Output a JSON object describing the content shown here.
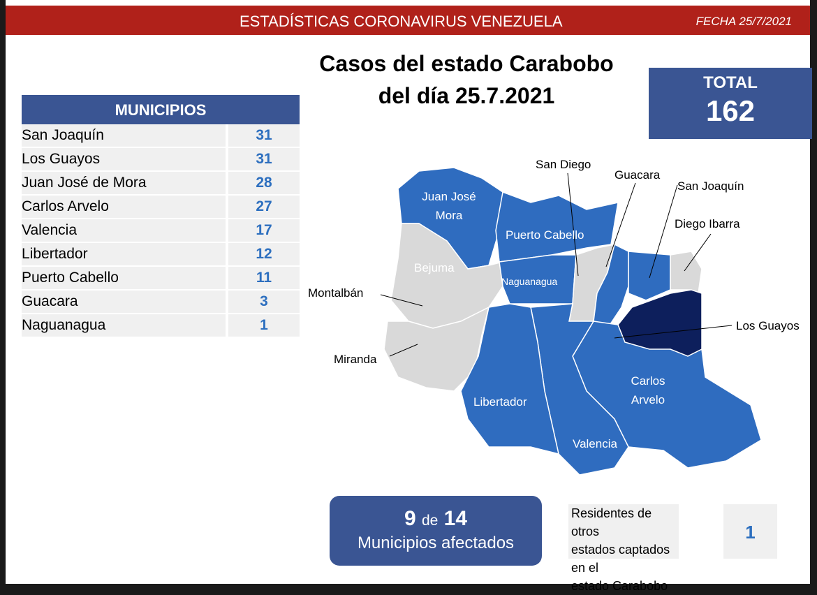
{
  "header": {
    "title": "ESTADÍSTICAS CORONAVIRUS VENEZUELA",
    "date": "FECHA 25/7/2021"
  },
  "main_title": {
    "line1": "Casos del estado Carabobo",
    "line2": "del día 25.7.2021"
  },
  "total": {
    "label": "TOTAL",
    "value": "162"
  },
  "municipios": {
    "header": "MUNICIPIOS",
    "rows": [
      {
        "name": "San Joaquín",
        "count": "31"
      },
      {
        "name": "Los Guayos",
        "count": "31"
      },
      {
        "name": "Juan José de Mora",
        "count": "28"
      },
      {
        "name": "Carlos Arvelo",
        "count": "27"
      },
      {
        "name": "Valencia",
        "count": "17"
      },
      {
        "name": "Libertador",
        "count": "12"
      },
      {
        "name": "Puerto Cabello",
        "count": "11"
      },
      {
        "name": "Guacara",
        "count": "3"
      },
      {
        "name": "Naguanagua",
        "count": "1"
      }
    ]
  },
  "map": {
    "labels": {
      "juan_jose_mora_1": "Juan José",
      "juan_jose_mora_2": "Mora",
      "puerto_cabello": "Puerto Cabello",
      "bejuma": "Bejuma",
      "naguanagua": "Naguanagua",
      "libertador": "Libertador",
      "valencia": "Valencia",
      "carlos_arvelo_1": "Carlos",
      "carlos_arvelo_2": "Arvelo",
      "san_diego": "San Diego",
      "guacara": "Guacara",
      "san_joaquin": "San Joaquín",
      "diego_ibarra": "Diego Ibarra",
      "los_guayos": "Los Guayos",
      "montalban": "Montalbán",
      "miranda": "Miranda"
    },
    "colors": {
      "affected": "#2f6cbf",
      "top": "#0d1f5c",
      "none": "#d9d9d9"
    }
  },
  "affected": {
    "count": "9",
    "of": "de",
    "total": "14",
    "label": "Municipios afectados"
  },
  "residents": {
    "line1": "Residentes de otros",
    "line2": "estados captados en el",
    "line3": "estado Carabobo",
    "value": "1"
  }
}
